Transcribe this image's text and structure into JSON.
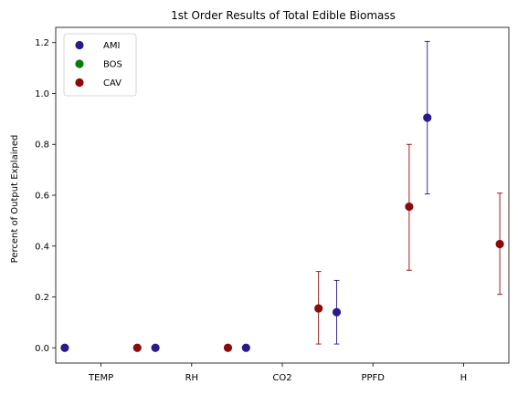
{
  "chart_data": {
    "type": "scatter",
    "title": "1st Order Results of Total Edible Biomass",
    "xlabel": "",
    "ylabel": "Percent of Output Explained",
    "categories": [
      "TEMP",
      "RH",
      "CO2",
      "PPFD",
      "H"
    ],
    "ylim": [
      -0.06,
      1.26
    ],
    "yticks": [
      0.0,
      0.2,
      0.4,
      0.6,
      0.8,
      1.0,
      1.2
    ],
    "grid": false,
    "legend_position": "top-left",
    "series": [
      {
        "name": "AMI",
        "color": "#2a1a8c",
        "offset": -0.4,
        "values": [
          0.0,
          0.0,
          0.0,
          0.14,
          0.905
        ],
        "error_low": [
          null,
          null,
          null,
          0.015,
          0.605
        ],
        "error_high": [
          null,
          null,
          null,
          0.265,
          1.205
        ]
      },
      {
        "name": "BOS",
        "color": "#0a7a0a",
        "offset": 0.0,
        "values": [],
        "error_low": [],
        "error_high": []
      },
      {
        "name": "CAV",
        "color": "#8b0a0a",
        "offset": 0.4,
        "values": [
          0.0,
          0.0,
          null,
          0.155,
          0.555,
          0.408
        ],
        "x_index": [
          0,
          1,
          2,
          2,
          3,
          4
        ],
        "error_low": [
          null,
          null,
          null,
          0.015,
          0.305,
          0.21
        ],
        "error_high": [
          null,
          null,
          null,
          0.3,
          0.8,
          0.608
        ]
      }
    ]
  }
}
